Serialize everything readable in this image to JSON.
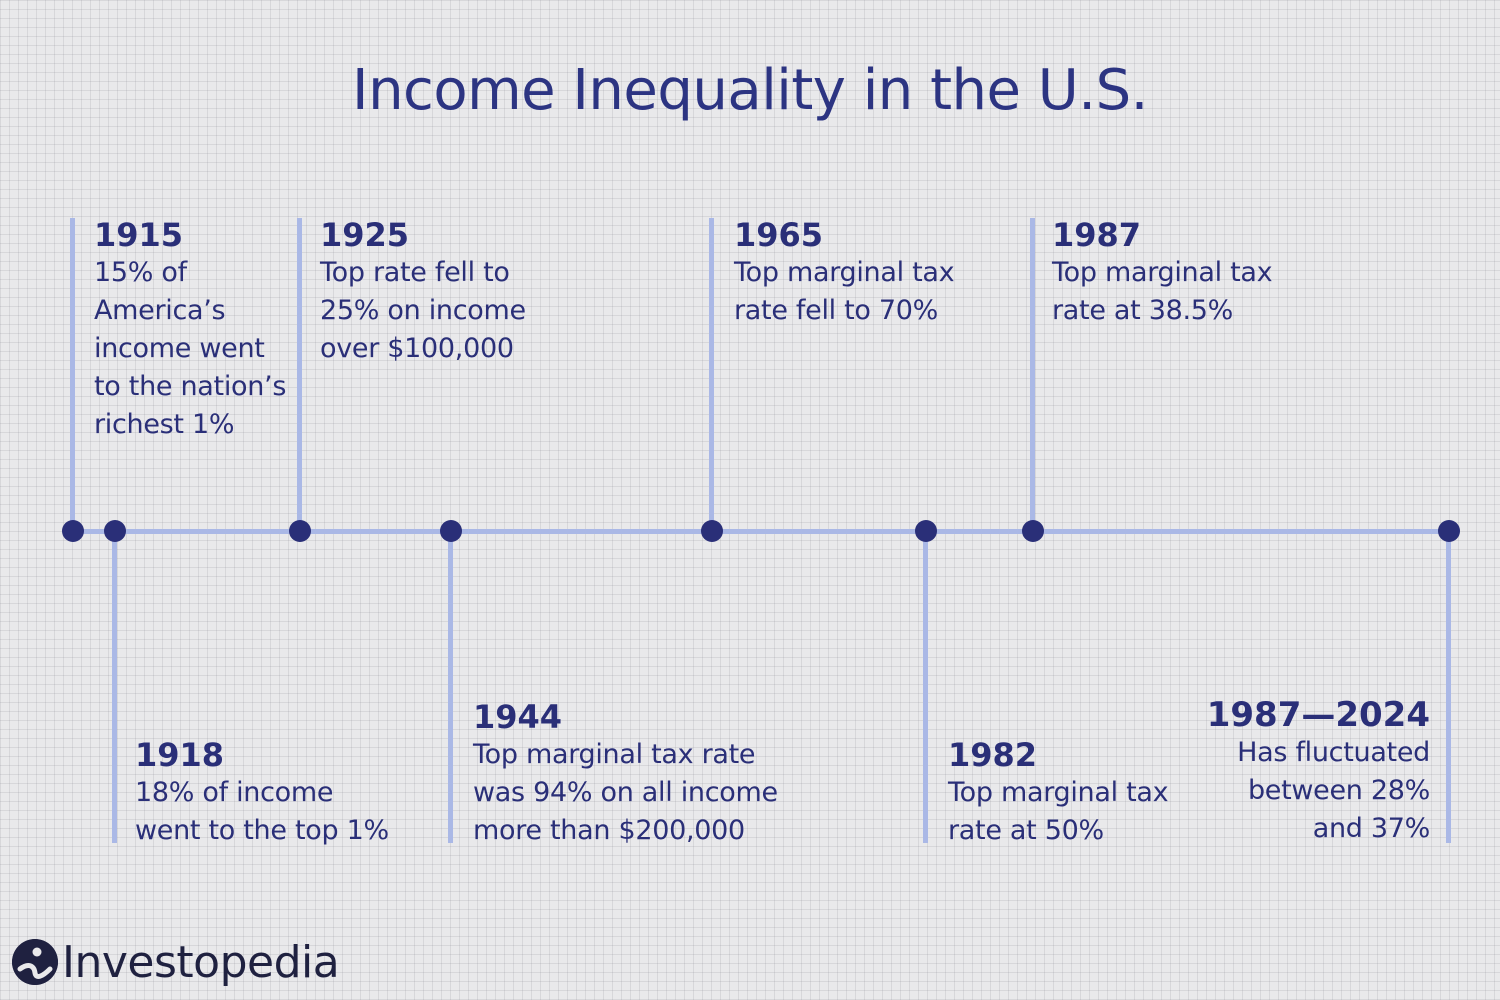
{
  "title": "Income Inequality in the U.S.",
  "events": [
    {
      "year": "1915",
      "description": "15% of\nAmerica’s\nincome went\nto the nation’s\nrichest 1%"
    },
    {
      "year": "1918",
      "description": "18% of income\nwent to the top 1%"
    },
    {
      "year": "1925",
      "description": "Top rate fell to\n25% on income\nover $100,000"
    },
    {
      "year": "1944",
      "description": "Top marginal tax rate\nwas 94% on all income\nmore than $200,000"
    },
    {
      "year": "1965",
      "description": "Top marginal tax\nrate fell to 70%"
    },
    {
      "year": "1982",
      "description": "Top marginal tax\nrate at 50%"
    },
    {
      "year": "1987",
      "description": "Top marginal tax\nrate at 38.5%"
    },
    {
      "year": "1987—2024",
      "description": "Has fluctuated\nbetween 28%\nand 37%"
    }
  ],
  "brand": {
    "name": "Investopedia",
    "icon": "investopedia-logo-icon"
  },
  "colors": {
    "text": "#2a2f78",
    "line": "#aab8e6",
    "dot": "#2a2f78",
    "background": "#e9e9eb"
  }
}
